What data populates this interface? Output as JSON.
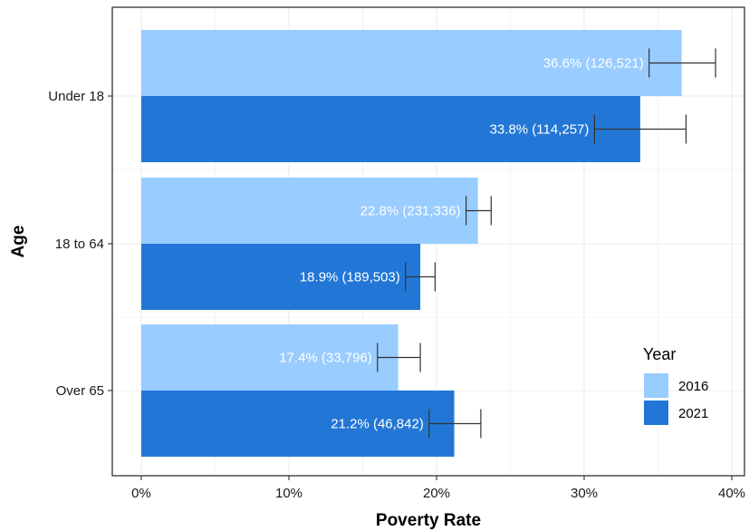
{
  "chart_data": {
    "type": "bar",
    "orientation": "horizontal",
    "xlabel": "Poverty Rate",
    "ylabel": "Age",
    "xlim": [
      0,
      40
    ],
    "x_ticks": [
      0,
      10,
      20,
      30,
      40
    ],
    "x_tick_labels": [
      "0%",
      "10%",
      "20%",
      "30%",
      "40%"
    ],
    "categories": [
      "Under 18",
      "18 to 64",
      "Over 65"
    ],
    "series": [
      {
        "name": "2016",
        "color": "#99CCFF",
        "values": [
          36.6,
          22.8,
          17.4
        ],
        "error_low": [
          34.4,
          22.0,
          16.0
        ],
        "error_high": [
          38.9,
          23.7,
          18.9
        ],
        "labels": [
          "36.6% (126,521)",
          "22.8% (231,336)",
          "17.4% (33,796)"
        ]
      },
      {
        "name": "2021",
        "color": "#2277D6",
        "values": [
          33.8,
          18.9,
          21.2
        ],
        "error_low": [
          30.7,
          17.9,
          19.5
        ],
        "error_high": [
          36.9,
          19.9,
          23.0
        ],
        "labels": [
          "33.8% (114,257)",
          "18.9% (189,503)",
          "21.2% (46,842)"
        ]
      }
    ],
    "grid": true,
    "legend": {
      "title": "Year",
      "position": "bottom-right"
    }
  }
}
